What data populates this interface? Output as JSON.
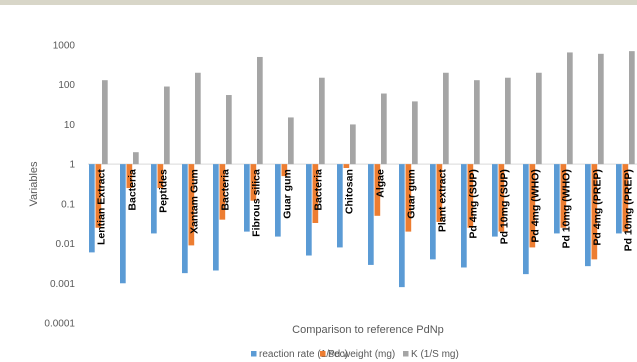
{
  "chart_data": {
    "type": "bar",
    "yscale": "log",
    "ylim": [
      0.0001,
      1000
    ],
    "baseline": 1,
    "ylabel": "Variables",
    "xlabel": "Comparison to reference PdNp",
    "ytick_labels": [
      "1000",
      "100",
      "10",
      "1",
      "0.1",
      "0.01",
      "0.001",
      "0.0001"
    ],
    "categories": [
      "Lentian Extract",
      "Bacteria",
      "Peptides",
      "Xantam Gum",
      "Bacteria",
      "Fibrous silica",
      "Guar gum",
      "Bacteria",
      "Chitosan",
      "Algae",
      "Guar gum",
      "Plant extract",
      "Pd 4mg (SUP)",
      "Pd 10mg (SUP)",
      "Pd 4mg (WHO)",
      "Pd 10mg (WHO)",
      "Pd 4mg (PREP)",
      "Pd 10mg (PREP)"
    ],
    "series": [
      {
        "name": "reaction rate (1/sec)",
        "color": "#5b9bd5",
        "values": [
          0.006,
          0.001,
          0.018,
          0.0018,
          0.0021,
          0.02,
          0.015,
          0.005,
          0.008,
          0.0029,
          0.0008,
          0.004,
          0.0025,
          0.015,
          0.0017,
          0.018,
          0.0027,
          0.018
        ]
      },
      {
        "name": "Pd weight (mg)",
        "color": "#ed7d31",
        "values": [
          0.025,
          0.25,
          0.25,
          0.009,
          0.04,
          0.12,
          0.5,
          0.033,
          0.8,
          0.05,
          0.02,
          0.035,
          0.025,
          0.02,
          0.008,
          0.025,
          0.004,
          0.02
        ]
      },
      {
        "name": "K (1/S mg)",
        "color": "#a5a5a5",
        "values": [
          130,
          2,
          90,
          200,
          55,
          500,
          15,
          150,
          10,
          60,
          38,
          200,
          130,
          150,
          200,
          650,
          600,
          700
        ]
      }
    ],
    "legend_position": "bottom",
    "grid": false
  }
}
